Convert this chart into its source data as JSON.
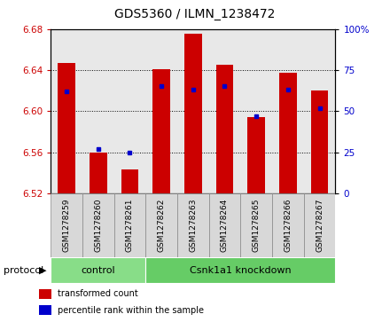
{
  "title": "GDS5360 / ILMN_1238472",
  "samples": [
    "GSM1278259",
    "GSM1278260",
    "GSM1278261",
    "GSM1278262",
    "GSM1278263",
    "GSM1278264",
    "GSM1278265",
    "GSM1278266",
    "GSM1278267"
  ],
  "transformed_count": [
    6.647,
    6.56,
    6.543,
    6.641,
    6.675,
    6.645,
    6.594,
    6.637,
    6.62
  ],
  "percentile_rank": [
    62,
    27,
    25,
    65,
    63,
    65,
    47,
    63,
    52
  ],
  "y_min": 6.52,
  "y_max": 6.68,
  "y_ticks": [
    6.52,
    6.56,
    6.6,
    6.64,
    6.68
  ],
  "right_y_ticks": [
    0,
    25,
    50,
    75,
    100
  ],
  "right_y_labels": [
    "0",
    "25",
    "50",
    "75",
    "100%"
  ],
  "bar_color": "#cc0000",
  "dot_color": "#0000cc",
  "bar_width": 0.55,
  "protocol_groups": [
    {
      "label": "control",
      "start": 0,
      "end": 2,
      "color": "#88dd88"
    },
    {
      "label": "Csnk1a1 knockdown",
      "start": 3,
      "end": 8,
      "color": "#66cc66"
    }
  ],
  "protocol_label": "protocol",
  "legend_items": [
    {
      "label": "transformed count",
      "color": "#cc0000"
    },
    {
      "label": "percentile rank within the sample",
      "color": "#0000cc"
    }
  ],
  "plot_bg_color": "#e8e8e8",
  "sample_box_color": "#d8d8d8",
  "sample_box_edge": "#888888",
  "tick_color_left": "#cc0000",
  "tick_color_right": "#0000cc",
  "grid_color": "black",
  "title_fontsize": 10,
  "tick_fontsize": 7.5,
  "sample_fontsize": 6.5,
  "protocol_fontsize": 8,
  "legend_fontsize": 7
}
